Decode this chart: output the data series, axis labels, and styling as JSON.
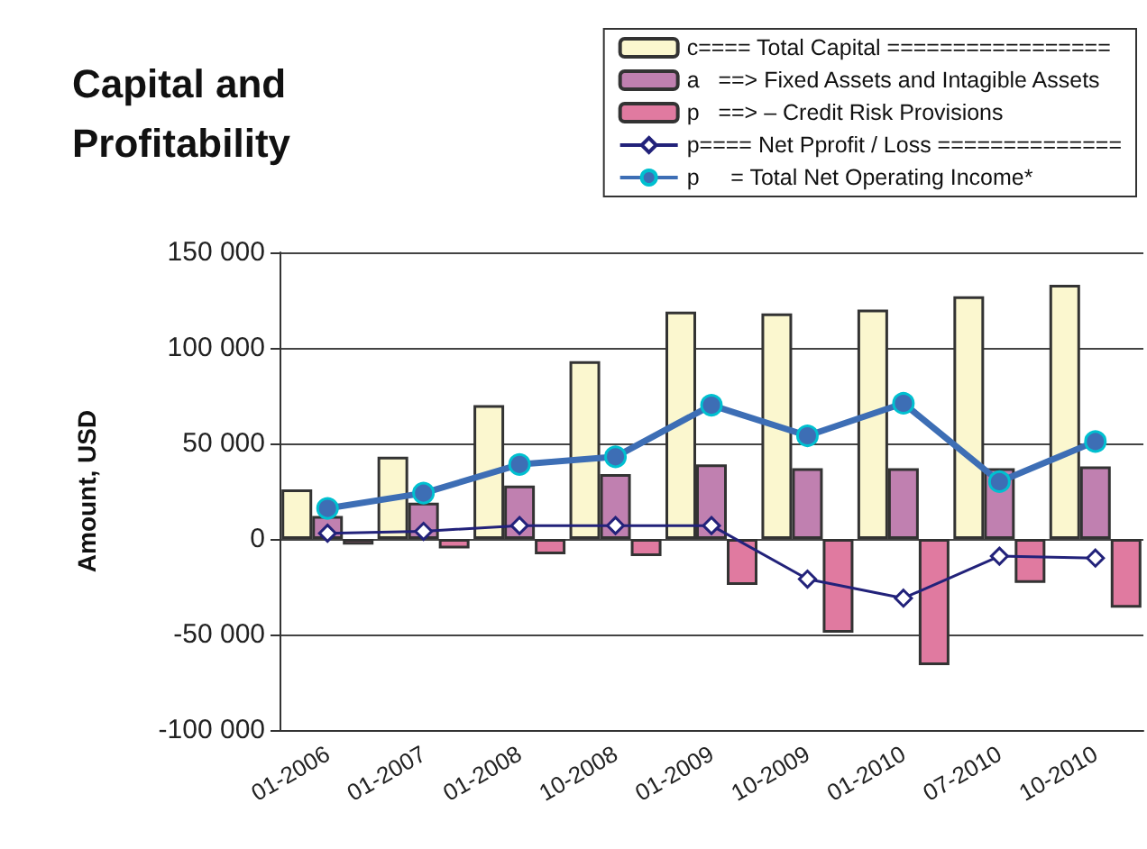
{
  "chart_data": {
    "type": "bar",
    "title": "Capital and\nProfitability",
    "ylabel": "Amount, USD",
    "categories": [
      "01-2006",
      "01-2007",
      "01-2008",
      "10-2008",
      "01-2009",
      "10-2009",
      "01-2010",
      "07-2010",
      "10-2010"
    ],
    "series": [
      {
        "name": "c==== Total Capital =================",
        "color": "#fbf7cf",
        "values": [
          26000,
          43000,
          70000,
          93000,
          119000,
          118000,
          120000,
          127000,
          133000
        ]
      },
      {
        "name": "a   ==> Fixed Assets and Intagible Assets",
        "color": "#c080b0",
        "values": [
          12000,
          19000,
          28000,
          34000,
          39000,
          37000,
          37000,
          37000,
          38000
        ]
      },
      {
        "name": "p   ==> – Credit Risk Provisions",
        "color": "#e07aa0",
        "values": [
          -3000,
          -5000,
          -8000,
          -9000,
          -24000,
          -49000,
          -66000,
          -23000,
          -36000
        ]
      },
      {
        "name": "p==== Net Pprofit / Loss ==============",
        "type": "line",
        "marker": "diamond",
        "color": "#22227a",
        "values": [
          3000,
          4000,
          7000,
          7000,
          7000,
          -21000,
          -31000,
          -9000,
          -10000
        ]
      },
      {
        "name": "p     = Total Net Operating Income*",
        "type": "line",
        "marker": "circle",
        "color": "#3d6eb5",
        "values": [
          16000,
          24000,
          39000,
          43000,
          70000,
          54000,
          71000,
          30000,
          51000
        ]
      }
    ],
    "ylim": [
      -100000,
      150000
    ],
    "yticks": [
      {
        "value": -100000,
        "label": "-100 000"
      },
      {
        "value": -50000,
        "label": "-50 000"
      },
      {
        "value": 0,
        "label": "0"
      },
      {
        "value": 50000,
        "label": "50 000"
      },
      {
        "value": 100000,
        "label": "100 000"
      },
      {
        "value": 150000,
        "label": "150 000"
      }
    ],
    "grid": "y",
    "legend": "top right"
  }
}
